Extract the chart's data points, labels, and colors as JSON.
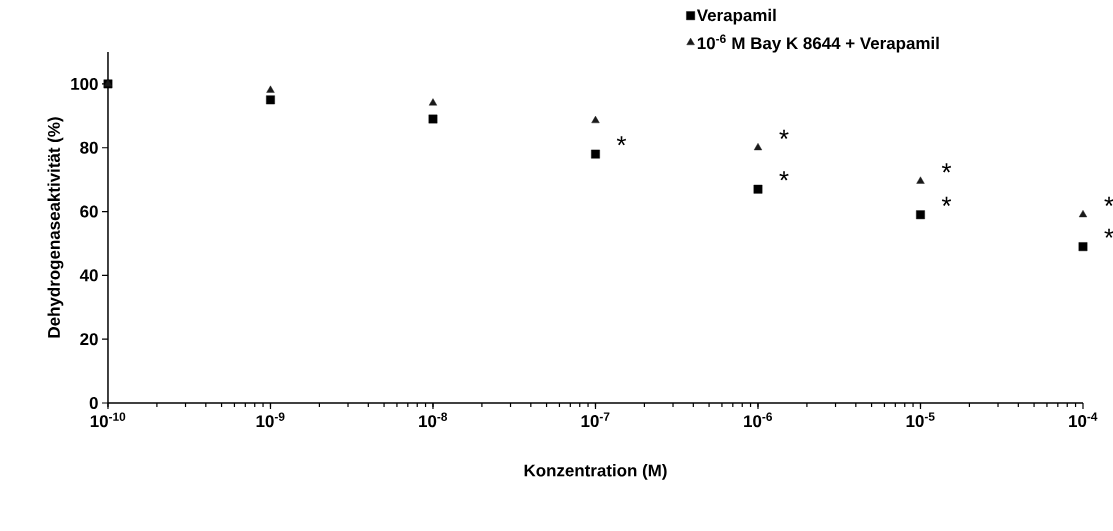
{
  "chart_data": {
    "type": "scatter",
    "xlabel": "Konzentration (M)",
    "ylabel": "Dehydrogenaseaktivität (%)",
    "x": [
      1e-10,
      1e-09,
      1e-08,
      1e-07,
      1e-06,
      1e-05,
      0.0001
    ],
    "series": [
      {
        "name": "Verapamil",
        "color": "#000000",
        "marker": "square",
        "values": [
          100,
          95,
          89,
          78,
          67,
          59,
          49
        ]
      },
      {
        "name": "10$^{-6}$ M Bay K 8644 + Verapamil",
        "color": "#1a1a1a",
        "marker": "triangle",
        "values": [
          100,
          98,
          94,
          88.5,
          80,
          69.5,
          59
        ]
      }
    ],
    "log": "x",
    "xlim": [
      1e-10,
      0.0001
    ],
    "ylim": [
      0,
      110
    ],
    "xticks": [
      {
        "value": 1e-10,
        "label": "10$^{-10}$"
      },
      {
        "value": 1e-09,
        "label": "10$^{-9}$"
      },
      {
        "value": 1e-08,
        "label": "10$^{-8}$"
      },
      {
        "value": 1e-07,
        "label": "10$^{-7}$"
      },
      {
        "value": 1e-06,
        "label": "10$^{-6}$"
      },
      {
        "value": 1e-05,
        "label": "10$^{-5}$"
      },
      {
        "value": 0.0001,
        "label": "10$^{-4}$"
      }
    ],
    "yticks": [
      0,
      20,
      40,
      60,
      80,
      100
    ],
    "grid": false,
    "legend": "top right",
    "annotations": [
      {
        "text": "*",
        "x": 1e-07,
        "y": 78
      },
      {
        "text": "*",
        "x": 1e-06,
        "y": 80
      },
      {
        "text": "*",
        "x": 1e-06,
        "y": 67
      },
      {
        "text": "*",
        "x": 1e-05,
        "y": 69.5
      },
      {
        "text": "*",
        "x": 1e-05,
        "y": 59
      },
      {
        "text": "*",
        "x": 0.0001,
        "y": 59
      },
      {
        "text": "*",
        "x": 0.0001,
        "y": 49
      }
    ]
  }
}
